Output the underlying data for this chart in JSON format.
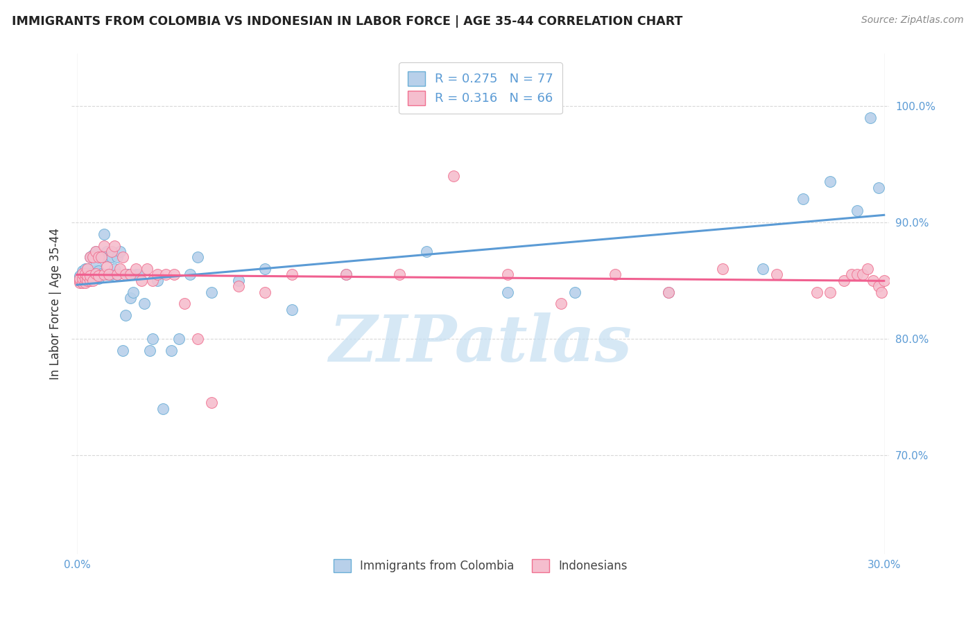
{
  "title": "IMMIGRANTS FROM COLOMBIA VS INDONESIAN IN LABOR FORCE | AGE 35-44 CORRELATION CHART",
  "source": "Source: ZipAtlas.com",
  "ylabel_label": "In Labor Force | Age 35-44",
  "xlim": [
    -0.002,
    0.302
  ],
  "ylim": [
    0.615,
    1.045
  ],
  "x_tick_positions": [
    0.0,
    0.3
  ],
  "x_tick_labels": [
    "0.0%",
    "30.0%"
  ],
  "y_tick_positions": [
    0.7,
    0.8,
    0.9,
    1.0
  ],
  "y_tick_labels": [
    "70.0%",
    "80.0%",
    "90.0%",
    "100.0%"
  ],
  "col_R": 0.275,
  "col_N": 77,
  "ind_R": 0.316,
  "ind_N": 66,
  "col_color": "#b8d0ea",
  "ind_color": "#f5bece",
  "col_edge_color": "#6aaed6",
  "ind_edge_color": "#f07090",
  "col_line_color": "#5b9bd5",
  "ind_line_color": "#f06090",
  "watermark": "ZIPatlas",
  "watermark_color": "#c5dff2",
  "background_color": "#ffffff",
  "grid_color": "#d8d8d8",
  "title_color": "#222222",
  "source_color": "#888888",
  "tick_color": "#5b9bd5",
  "ylabel_color": "#333333",
  "legend_text_color": "#5b9bd5",
  "bottom_legend_color": "#444444",
  "col_scatter_x": [
    0.001,
    0.001,
    0.001,
    0.001,
    0.002,
    0.002,
    0.002,
    0.002,
    0.002,
    0.003,
    0.003,
    0.003,
    0.003,
    0.003,
    0.004,
    0.004,
    0.004,
    0.004,
    0.005,
    0.005,
    0.005,
    0.005,
    0.006,
    0.006,
    0.006,
    0.007,
    0.007,
    0.007,
    0.007,
    0.008,
    0.008,
    0.009,
    0.009,
    0.01,
    0.01,
    0.01,
    0.011,
    0.011,
    0.012,
    0.012,
    0.013,
    0.013,
    0.014,
    0.015,
    0.015,
    0.016,
    0.017,
    0.018,
    0.019,
    0.02,
    0.021,
    0.022,
    0.023,
    0.025,
    0.027,
    0.028,
    0.03,
    0.032,
    0.035,
    0.038,
    0.042,
    0.045,
    0.05,
    0.06,
    0.07,
    0.08,
    0.1,
    0.13,
    0.16,
    0.185,
    0.22,
    0.255,
    0.27,
    0.28,
    0.29,
    0.295,
    0.298
  ],
  "col_scatter_y": [
    0.851,
    0.852,
    0.853,
    0.854,
    0.85,
    0.852,
    0.854,
    0.856,
    0.858,
    0.849,
    0.851,
    0.854,
    0.856,
    0.86,
    0.85,
    0.853,
    0.856,
    0.86,
    0.85,
    0.853,
    0.856,
    0.87,
    0.852,
    0.856,
    0.872,
    0.855,
    0.858,
    0.863,
    0.875,
    0.852,
    0.858,
    0.856,
    0.87,
    0.855,
    0.87,
    0.89,
    0.855,
    0.875,
    0.855,
    0.87,
    0.855,
    0.87,
    0.86,
    0.855,
    0.87,
    0.875,
    0.79,
    0.82,
    0.855,
    0.835,
    0.84,
    0.855,
    0.855,
    0.83,
    0.79,
    0.8,
    0.85,
    0.74,
    0.79,
    0.8,
    0.855,
    0.87,
    0.84,
    0.85,
    0.86,
    0.825,
    0.855,
    0.875,
    0.84,
    0.84,
    0.84,
    0.86,
    0.92,
    0.935,
    0.91,
    0.99,
    0.93
  ],
  "ind_scatter_x": [
    0.001,
    0.001,
    0.001,
    0.002,
    0.002,
    0.002,
    0.003,
    0.003,
    0.003,
    0.004,
    0.004,
    0.004,
    0.005,
    0.005,
    0.005,
    0.006,
    0.006,
    0.007,
    0.007,
    0.008,
    0.008,
    0.009,
    0.01,
    0.01,
    0.011,
    0.012,
    0.013,
    0.014,
    0.015,
    0.016,
    0.017,
    0.018,
    0.02,
    0.022,
    0.024,
    0.026,
    0.028,
    0.03,
    0.033,
    0.036,
    0.04,
    0.045,
    0.05,
    0.06,
    0.07,
    0.08,
    0.1,
    0.12,
    0.14,
    0.16,
    0.18,
    0.2,
    0.22,
    0.24,
    0.26,
    0.275,
    0.28,
    0.285,
    0.288,
    0.29,
    0.292,
    0.294,
    0.296,
    0.298,
    0.299,
    0.3
  ],
  "ind_scatter_y": [
    0.848,
    0.85,
    0.852,
    0.848,
    0.852,
    0.856,
    0.848,
    0.852,
    0.856,
    0.85,
    0.854,
    0.86,
    0.85,
    0.854,
    0.87,
    0.85,
    0.87,
    0.856,
    0.875,
    0.854,
    0.87,
    0.87,
    0.855,
    0.88,
    0.862,
    0.855,
    0.875,
    0.88,
    0.855,
    0.86,
    0.87,
    0.855,
    0.855,
    0.86,
    0.85,
    0.86,
    0.85,
    0.855,
    0.855,
    0.855,
    0.83,
    0.8,
    0.745,
    0.845,
    0.84,
    0.855,
    0.855,
    0.855,
    0.94,
    0.855,
    0.83,
    0.855,
    0.84,
    0.86,
    0.855,
    0.84,
    0.84,
    0.85,
    0.855,
    0.855,
    0.855,
    0.86,
    0.85,
    0.845,
    0.84,
    0.85
  ]
}
